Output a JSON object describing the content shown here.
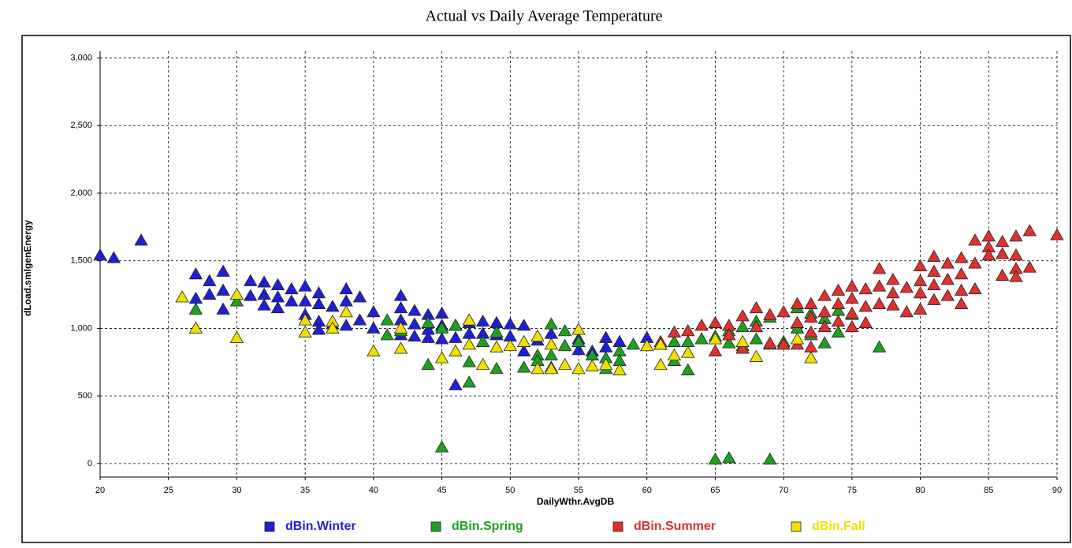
{
  "chart_data": {
    "type": "scatter",
    "title": "Actual vs Daily Average Temperature",
    "x_label": "DailyWthr.AvgDB",
    "y_label": "dLoad.smlgenEnergy",
    "xlim": [
      20,
      90
    ],
    "ylim": [
      -100,
      3050
    ],
    "xticks": [
      20,
      25,
      30,
      35,
      40,
      45,
      50,
      55,
      60,
      65,
      70,
      75,
      80,
      85,
      90
    ],
    "yticks": [
      0,
      500,
      {
        "value": 1000,
        "label": "1,000"
      },
      {
        "value": 1500,
        "label": "1,500"
      },
      {
        "value": 2000,
        "label": "2,000"
      },
      {
        "value": 2500,
        "label": "2,500"
      },
      {
        "value": 3000,
        "label": "3,000"
      }
    ],
    "grid": true,
    "series": [
      {
        "name": "dBin.Winter",
        "color": "#1f1fd6",
        "x": [
          20,
          21,
          23,
          27,
          27,
          28,
          28,
          29,
          29,
          29,
          31,
          31,
          32,
          32,
          32,
          33,
          33,
          33,
          34,
          34,
          35,
          35,
          35,
          36,
          36,
          36,
          36,
          37,
          37,
          38,
          38,
          38,
          39,
          39,
          40,
          40,
          42,
          42,
          42,
          42,
          43,
          43,
          43,
          44,
          44,
          44,
          45,
          45,
          45,
          46,
          46,
          46,
          47,
          47,
          48,
          48,
          49,
          49,
          50,
          50,
          51,
          51,
          52,
          53,
          54,
          55,
          55,
          56,
          57,
          57,
          58,
          60
        ],
        "values": [
          1540,
          1520,
          1650,
          1400,
          1220,
          1350,
          1250,
          1420,
          1280,
          1140,
          1350,
          1240,
          1340,
          1250,
          1170,
          1320,
          1230,
          1150,
          1290,
          1200,
          1310,
          1200,
          1100,
          1260,
          1180,
          1050,
          990,
          1160,
          1030,
          1290,
          1200,
          1020,
          1230,
          1060,
          1120,
          1000,
          1240,
          1150,
          1060,
          950,
          1130,
          1030,
          940,
          1100,
          990,
          930,
          1110,
          1020,
          920,
          1020,
          930,
          580,
          1040,
          960,
          1050,
          960,
          1040,
          950,
          1030,
          940,
          1020,
          830,
          910,
          960,
          870,
          920,
          840,
          830,
          930,
          860,
          900,
          930
        ]
      },
      {
        "name": "dBin.Spring",
        "color": "#1fa01f",
        "x": [
          27,
          30,
          41,
          41,
          42,
          44,
          44,
          45,
          45,
          46,
          47,
          47,
          48,
          49,
          49,
          51,
          52,
          52,
          53,
          53,
          53,
          54,
          54,
          55,
          56,
          57,
          57,
          58,
          58,
          59,
          61,
          62,
          62,
          63,
          63,
          64,
          65,
          65,
          66,
          66,
          66,
          67,
          67,
          68,
          68,
          69,
          69,
          69,
          70,
          71,
          71,
          72,
          72,
          73,
          73,
          74,
          74,
          75,
          77
        ],
        "values": [
          1140,
          1200,
          1060,
          950,
          980,
          1040,
          730,
          120,
          1000,
          1020,
          750,
          600,
          900,
          970,
          700,
          710,
          800,
          760,
          1030,
          800,
          710,
          980,
          870,
          900,
          800,
          700,
          780,
          830,
          760,
          880,
          880,
          900,
          760,
          900,
          690,
          920,
          30,
          940,
          980,
          40,
          890,
          1010,
          870,
          1050,
          920,
          1080,
          30,
          880,
          900,
          1150,
          1000,
          1110,
          950,
          1070,
          890,
          1130,
          970,
          1100,
          860
        ]
      },
      {
        "name": "dBin.Summer",
        "color": "#e03030",
        "x": [
          60,
          61,
          62,
          63,
          64,
          65,
          65,
          66,
          66,
          67,
          67,
          68,
          68,
          69,
          69,
          70,
          70,
          71,
          71,
          71,
          72,
          72,
          72,
          72,
          73,
          73,
          73,
          74,
          74,
          74,
          75,
          75,
          75,
          75,
          76,
          76,
          76,
          77,
          77,
          77,
          78,
          78,
          78,
          79,
          79,
          80,
          80,
          80,
          80,
          81,
          81,
          81,
          81,
          82,
          82,
          82,
          83,
          83,
          83,
          83,
          84,
          84,
          84,
          85,
          85,
          85,
          86,
          86,
          86,
          87,
          87,
          87,
          87,
          88,
          88,
          90
        ],
        "values": [
          870,
          900,
          970,
          980,
          1020,
          1040,
          830,
          1020,
          950,
          1090,
          850,
          1150,
          1010,
          1100,
          890,
          1120,
          880,
          1180,
          1040,
          880,
          1180,
          1080,
          970,
          860,
          1240,
          1120,
          1010,
          1280,
          1180,
          1050,
          1310,
          1220,
          1110,
          1010,
          1290,
          1160,
          1040,
          1440,
          1310,
          1180,
          1360,
          1260,
          1170,
          1300,
          1120,
          1460,
          1350,
          1260,
          1140,
          1530,
          1420,
          1320,
          1210,
          1480,
          1360,
          1240,
          1520,
          1400,
          1280,
          1180,
          1650,
          1480,
          1290,
          1680,
          1600,
          1540,
          1640,
          1550,
          1390,
          1680,
          1540,
          1440,
          1380,
          1720,
          1450,
          1690
        ]
      },
      {
        "name": "dBin.Fall",
        "color": "#f0e000",
        "x": [
          26,
          27,
          30,
          30,
          35,
          35,
          37,
          37,
          38,
          40,
          42,
          42,
          45,
          46,
          47,
          47,
          48,
          49,
          50,
          51,
          52,
          52,
          53,
          53,
          54,
          55,
          55,
          56,
          57,
          58,
          60,
          61,
          61,
          62,
          63,
          65,
          67,
          68,
          71,
          72
        ],
        "values": [
          1230,
          1000,
          1250,
          930,
          1060,
          970,
          1050,
          1000,
          1120,
          830,
          1000,
          850,
          780,
          830,
          1060,
          880,
          730,
          860,
          870,
          900,
          940,
          700,
          880,
          700,
          730,
          990,
          700,
          720,
          730,
          690,
          870,
          880,
          730,
          800,
          820,
          920,
          900,
          790,
          920,
          780
        ]
      }
    ]
  }
}
